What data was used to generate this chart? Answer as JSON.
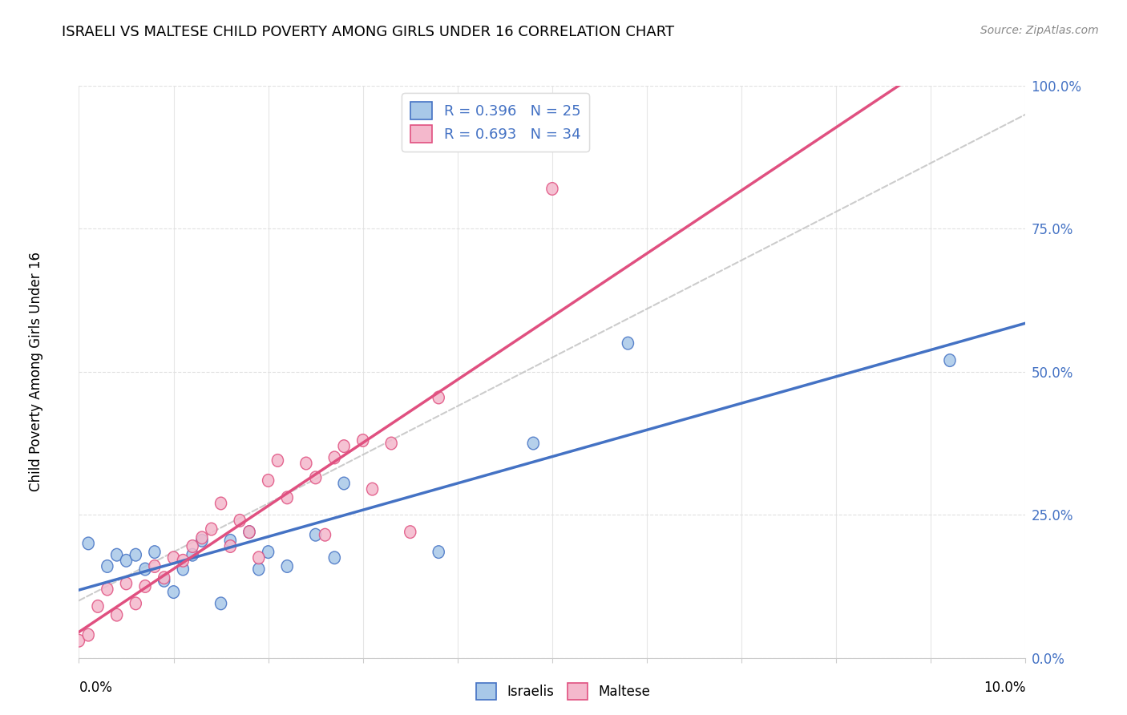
{
  "title": "ISRAELI VS MALTESE CHILD POVERTY AMONG GIRLS UNDER 16 CORRELATION CHART",
  "source": "Source: ZipAtlas.com",
  "ylabel": "Child Poverty Among Girls Under 16",
  "legend_label1": "Israelis",
  "legend_label2": "Maltese",
  "r_israeli": 0.396,
  "n_israeli": 25,
  "r_maltese": 0.693,
  "n_maltese": 34,
  "color_israeli": "#a8c8e8",
  "color_maltese": "#f4b8cc",
  "color_line_israeli": "#4472c4",
  "color_line_maltese": "#e05080",
  "color_ref_line": "#c0c0c0",
  "israeli_x": [
    0.001,
    0.003,
    0.004,
    0.005,
    0.006,
    0.007,
    0.008,
    0.009,
    0.01,
    0.011,
    0.012,
    0.013,
    0.015,
    0.016,
    0.018,
    0.019,
    0.02,
    0.022,
    0.025,
    0.027,
    0.028,
    0.038,
    0.048,
    0.058,
    0.092
  ],
  "israeli_y": [
    0.2,
    0.16,
    0.18,
    0.17,
    0.18,
    0.155,
    0.185,
    0.135,
    0.115,
    0.155,
    0.18,
    0.205,
    0.095,
    0.205,
    0.22,
    0.155,
    0.185,
    0.16,
    0.215,
    0.175,
    0.305,
    0.185,
    0.375,
    0.55,
    0.52
  ],
  "maltese_x": [
    0.0,
    0.001,
    0.002,
    0.003,
    0.004,
    0.005,
    0.006,
    0.007,
    0.008,
    0.009,
    0.01,
    0.011,
    0.012,
    0.013,
    0.014,
    0.015,
    0.016,
    0.017,
    0.018,
    0.019,
    0.02,
    0.021,
    0.022,
    0.024,
    0.025,
    0.026,
    0.027,
    0.028,
    0.03,
    0.031,
    0.033,
    0.035,
    0.038,
    0.05
  ],
  "maltese_y": [
    0.03,
    0.04,
    0.09,
    0.12,
    0.075,
    0.13,
    0.095,
    0.125,
    0.16,
    0.14,
    0.175,
    0.17,
    0.195,
    0.21,
    0.225,
    0.27,
    0.195,
    0.24,
    0.22,
    0.175,
    0.31,
    0.345,
    0.28,
    0.34,
    0.315,
    0.215,
    0.35,
    0.37,
    0.38,
    0.295,
    0.375,
    0.22,
    0.455,
    0.82
  ],
  "xmin": 0.0,
  "xmax": 0.1,
  "ymin": 0.0,
  "ymax": 1.0,
  "ytick_vals": [
    0.0,
    0.25,
    0.5,
    0.75,
    1.0
  ],
  "ytick_labels": [
    "0.0%",
    "25.0%",
    "50.0%",
    "75.0%",
    "100.0%"
  ],
  "background_color": "#ffffff",
  "grid_color": "#e0e0e0"
}
